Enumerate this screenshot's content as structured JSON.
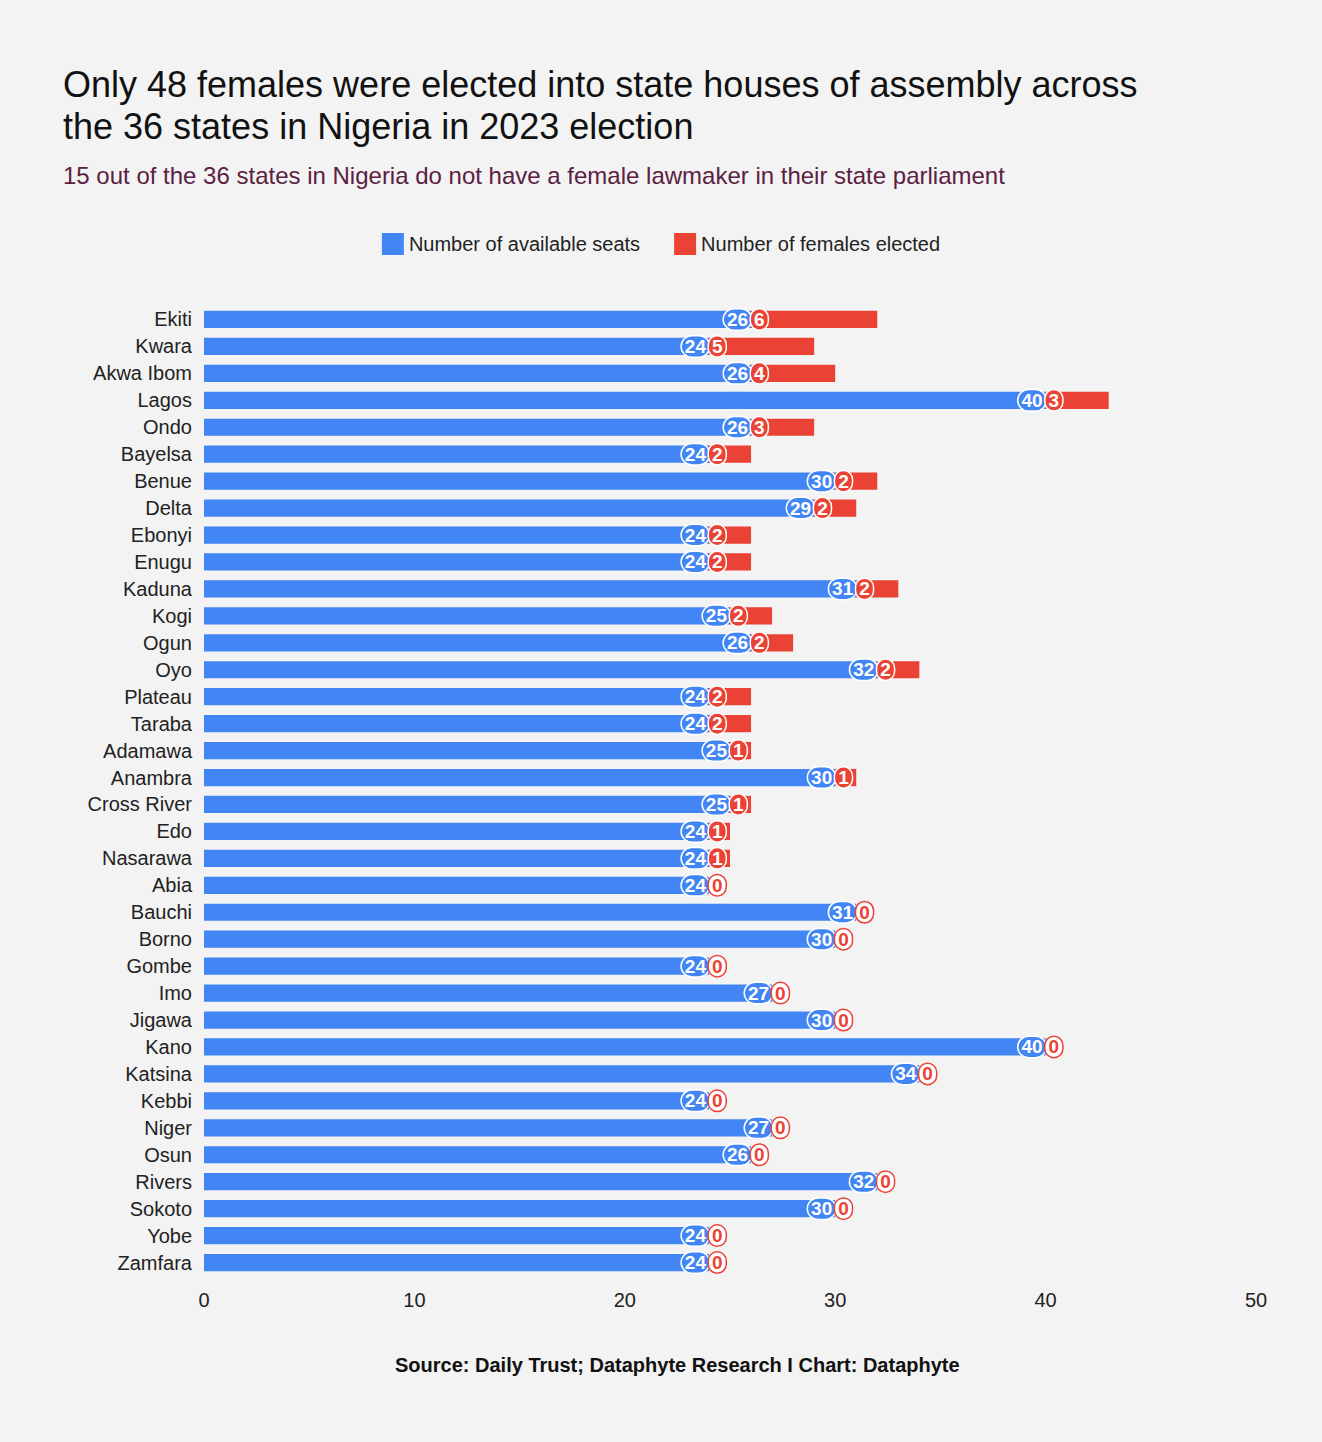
{
  "chart_data": {
    "type": "bar",
    "title": "Only 48 females were elected into state houses of assembly across the 36 states in Nigeria in 2023 election",
    "subtitle": "15 out of the 36 states in Nigeria do not have a female lawmaker in their state parliament",
    "source": "Source: Daily Trust; Dataphyte Research I Chart: Dataphyte",
    "orientation": "horizontal",
    "stacked": true,
    "data_labels": true,
    "grid": false,
    "legend": "top",
    "categories": [
      "Ekiti",
      "Kwara",
      "Akwa Ibom",
      "Lagos",
      "Ondo",
      "Bayelsa",
      "Benue",
      "Delta",
      "Ebonyi",
      "Enugu",
      "Kaduna",
      "Kogi",
      "Ogun",
      "Oyo",
      "Plateau",
      "Taraba",
      "Adamawa",
      "Anambra",
      "Cross River",
      "Edo",
      "Nasarawa",
      "Abia",
      "Bauchi",
      "Borno",
      "Gombe",
      "Imo",
      "Jigawa",
      "Kano",
      "Katsina",
      "Kebbi",
      "Niger",
      "Osun",
      "Rivers",
      "Sokoto",
      "Yobe",
      "Zamfara"
    ],
    "series": [
      {
        "name": "Number of available seats",
        "color": "#4285f4",
        "values": [
          26,
          24,
          26,
          40,
          26,
          24,
          30,
          29,
          24,
          24,
          31,
          25,
          26,
          32,
          24,
          24,
          25,
          30,
          25,
          24,
          24,
          24,
          31,
          30,
          24,
          27,
          30,
          40,
          34,
          24,
          27,
          26,
          32,
          30,
          24,
          24
        ]
      },
      {
        "name": "Number of females elected",
        "color": "#ea4335",
        "values": [
          6,
          5,
          4,
          3,
          3,
          2,
          2,
          2,
          2,
          2,
          2,
          2,
          2,
          2,
          2,
          2,
          1,
          1,
          1,
          1,
          1,
          0,
          0,
          0,
          0,
          0,
          0,
          0,
          0,
          0,
          0,
          0,
          0,
          0,
          0,
          0
        ]
      }
    ],
    "xlim": [
      0,
      50
    ],
    "xticks": [
      0,
      10,
      20,
      30,
      40,
      50
    ]
  }
}
